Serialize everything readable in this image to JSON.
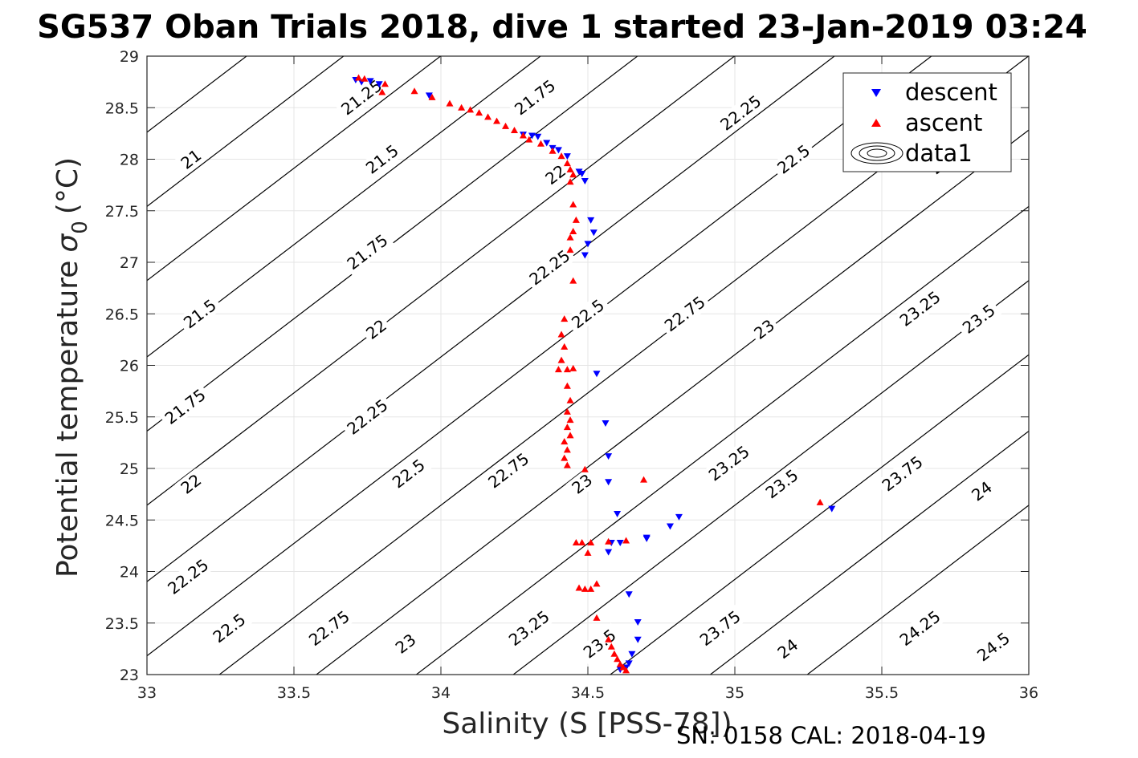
{
  "chart_data": {
    "type": "scatter",
    "title": "SG537 Oban Trials 2018, dive 1 started 23-Jan-2019 03:24",
    "xlabel": "Salinity (S [PSS-78])",
    "ylabel": "Potential temperature",
    "ylabel_sigma": "σ",
    "ylabel_sub": "0",
    "ylabel_unit": "(°C)",
    "xlim": [
      33,
      36
    ],
    "ylim": [
      23,
      29
    ],
    "x_ticks": [
      33,
      33.5,
      34,
      34.5,
      35,
      35.5,
      36
    ],
    "x_tick_labels": [
      "33",
      "33.5",
      "34",
      "34.5",
      "35",
      "35.5",
      "36"
    ],
    "y_ticks": [
      23,
      23.5,
      24,
      24.5,
      25,
      25.5,
      26,
      26.5,
      27,
      27.5,
      28,
      28.5,
      29
    ],
    "y_tick_labels": [
      "23",
      "23.5",
      "24",
      "24.5",
      "25",
      "25.5",
      "26",
      "26.5",
      "27",
      "27.5",
      "28",
      "28.5",
      "29"
    ],
    "grid": true,
    "legend": {
      "placement": "top-right",
      "entries": [
        {
          "name": "descent",
          "marker": "triangle-down",
          "color": "#0000ff"
        },
        {
          "name": "ascent",
          "marker": "triangle-up",
          "color": "#ff0000"
        },
        {
          "name": "data1",
          "marker": "contour"
        }
      ]
    },
    "footer": "SN: 0158  CAL: 2018-04-19",
    "colors": {
      "descent": "#0000ff",
      "ascent": "#ff0000",
      "contour": "#000000",
      "grid": "#e5e5e5"
    },
    "density_contours": {
      "levels": [
        21,
        21.25,
        21.5,
        21.75,
        22,
        22.25,
        22.5,
        22.75,
        23,
        23.25,
        23.5,
        23.75,
        24,
        24.25,
        24.5
      ],
      "slope_degC_per_PSU": 2.18,
      "reference_temperature_degC": 28.0,
      "reference_salinity_by_level": [
        [
          21,
          32.88
        ],
        [
          21.25,
          33.21
        ],
        [
          21.5,
          33.54
        ],
        [
          21.75,
          33.88
        ],
        [
          22,
          34.21
        ],
        [
          22.25,
          34.54
        ],
        [
          22.5,
          34.88
        ],
        [
          22.75,
          35.21
        ],
        [
          23,
          35.54
        ],
        [
          23.25,
          35.87
        ],
        [
          23.5,
          36.21
        ],
        [
          23.75,
          36.54
        ],
        [
          24,
          36.87
        ],
        [
          24.25,
          37.21
        ],
        [
          24.5,
          37.54
        ]
      ],
      "labels": [
        {
          "text": "21.25",
          "s": 33.73,
          "t": 28.6
        },
        {
          "text": "21",
          "s": 33.15,
          "t": 28.0
        },
        {
          "text": "21.5",
          "s": 33.8,
          "t": 28.0
        },
        {
          "text": "21.75",
          "s": 34.32,
          "t": 28.6
        },
        {
          "text": "22",
          "s": 34.39,
          "t": 27.85
        },
        {
          "text": "22.25",
          "s": 35.02,
          "t": 28.45
        },
        {
          "text": "22.5",
          "s": 35.2,
          "t": 28.0
        },
        {
          "text": "23",
          "s": 35.7,
          "t": 27.95
        },
        {
          "text": "21.75",
          "s": 33.75,
          "t": 27.1
        },
        {
          "text": "22.25",
          "s": 34.37,
          "t": 26.95
        },
        {
          "text": "21.5",
          "s": 33.18,
          "t": 26.5
        },
        {
          "text": "22",
          "s": 33.78,
          "t": 26.35
        },
        {
          "text": "22.5",
          "s": 34.5,
          "t": 26.5
        },
        {
          "text": "22.75",
          "s": 34.83,
          "t": 26.5
        },
        {
          "text": "23",
          "s": 35.1,
          "t": 26.35
        },
        {
          "text": "23.25",
          "s": 35.63,
          "t": 26.55
        },
        {
          "text": "23.5",
          "s": 35.83,
          "t": 26.45
        },
        {
          "text": "21.75",
          "s": 33.13,
          "t": 25.6
        },
        {
          "text": "22.25",
          "s": 33.75,
          "t": 25.5
        },
        {
          "text": "22.5",
          "s": 33.89,
          "t": 24.95
        },
        {
          "text": "22.75",
          "s": 34.23,
          "t": 24.98
        },
        {
          "text": "23",
          "s": 34.48,
          "t": 24.85
        },
        {
          "text": "23.25",
          "s": 34.98,
          "t": 25.05
        },
        {
          "text": "23.5",
          "s": 35.16,
          "t": 24.85
        },
        {
          "text": "23.75",
          "s": 35.57,
          "t": 24.95
        },
        {
          "text": "24",
          "s": 35.84,
          "t": 24.78
        },
        {
          "text": "22",
          "s": 33.15,
          "t": 24.85
        },
        {
          "text": "22.25",
          "s": 33.14,
          "t": 23.95
        },
        {
          "text": "22.5",
          "s": 33.28,
          "t": 23.45
        },
        {
          "text": "22.75",
          "s": 33.62,
          "t": 23.45
        },
        {
          "text": "23",
          "s": 33.88,
          "t": 23.3
        },
        {
          "text": "23.25",
          "s": 34.3,
          "t": 23.45
        },
        {
          "text": "23.5",
          "s": 34.54,
          "t": 23.3
        },
        {
          "text": "23.75",
          "s": 34.95,
          "t": 23.45
        },
        {
          "text": "24",
          "s": 35.18,
          "t": 23.25
        },
        {
          "text": "24.25",
          "s": 35.63,
          "t": 23.45
        },
        {
          "text": "24.5",
          "s": 35.88,
          "t": 23.27
        }
      ]
    },
    "series": [
      {
        "name": "descent",
        "marker": "triangle-down",
        "color": "#0000ff",
        "points": [
          [
            33.71,
            28.77
          ],
          [
            33.73,
            28.75
          ],
          [
            33.76,
            28.76
          ],
          [
            33.79,
            28.73
          ],
          [
            33.96,
            28.62
          ],
          [
            34.28,
            28.24
          ],
          [
            34.31,
            28.23
          ],
          [
            34.33,
            28.22
          ],
          [
            34.36,
            28.16
          ],
          [
            34.38,
            28.11
          ],
          [
            34.4,
            28.09
          ],
          [
            34.43,
            28.03
          ],
          [
            34.47,
            27.88
          ],
          [
            34.48,
            27.86
          ],
          [
            34.49,
            27.79
          ],
          [
            34.51,
            27.41
          ],
          [
            34.52,
            27.29
          ],
          [
            34.5,
            27.18
          ],
          [
            34.49,
            27.07
          ],
          [
            34.53,
            25.92
          ],
          [
            34.56,
            25.44
          ],
          [
            34.57,
            25.12
          ],
          [
            34.57,
            24.87
          ],
          [
            34.6,
            24.56
          ],
          [
            34.58,
            24.28
          ],
          [
            34.57,
            24.19
          ],
          [
            34.61,
            24.28
          ],
          [
            34.7,
            24.33
          ],
          [
            34.7,
            24.32
          ],
          [
            34.78,
            24.44
          ],
          [
            34.81,
            24.53
          ],
          [
            35.33,
            24.61
          ],
          [
            34.64,
            23.78
          ],
          [
            34.67,
            23.51
          ],
          [
            34.67,
            23.34
          ],
          [
            34.65,
            23.2
          ],
          [
            34.64,
            23.11
          ],
          [
            34.63,
            23.07
          ],
          [
            34.61,
            23.05
          ]
        ]
      },
      {
        "name": "ascent",
        "marker": "triangle-up",
        "color": "#ff0000",
        "points": [
          [
            33.72,
            28.79
          ],
          [
            33.74,
            28.78
          ],
          [
            33.81,
            28.73
          ],
          [
            33.8,
            28.65
          ],
          [
            33.91,
            28.66
          ],
          [
            33.97,
            28.6
          ],
          [
            34.03,
            28.54
          ],
          [
            34.07,
            28.5
          ],
          [
            34.1,
            28.48
          ],
          [
            34.13,
            28.45
          ],
          [
            34.16,
            28.41
          ],
          [
            34.19,
            28.37
          ],
          [
            34.22,
            28.32
          ],
          [
            34.25,
            28.28
          ],
          [
            34.28,
            28.23
          ],
          [
            34.3,
            28.19
          ],
          [
            34.34,
            28.15
          ],
          [
            34.38,
            28.08
          ],
          [
            34.41,
            28.03
          ],
          [
            34.43,
            27.96
          ],
          [
            34.44,
            27.9
          ],
          [
            34.45,
            27.85
          ],
          [
            34.44,
            27.78
          ],
          [
            34.45,
            27.56
          ],
          [
            34.46,
            27.41
          ],
          [
            34.45,
            27.3
          ],
          [
            34.44,
            27.24
          ],
          [
            34.44,
            27.12
          ],
          [
            34.45,
            26.82
          ],
          [
            34.42,
            26.45
          ],
          [
            34.41,
            26.3
          ],
          [
            34.42,
            26.18
          ],
          [
            34.41,
            26.05
          ],
          [
            34.4,
            25.96
          ],
          [
            34.43,
            25.96
          ],
          [
            34.45,
            25.97
          ],
          [
            34.43,
            25.8
          ],
          [
            34.44,
            25.66
          ],
          [
            34.43,
            25.55
          ],
          [
            34.44,
            25.47
          ],
          [
            34.43,
            25.4
          ],
          [
            34.44,
            25.32
          ],
          [
            34.42,
            25.26
          ],
          [
            34.43,
            25.18
          ],
          [
            34.42,
            25.1
          ],
          [
            34.43,
            25.03
          ],
          [
            34.49,
            24.99
          ],
          [
            34.69,
            24.89
          ],
          [
            35.29,
            24.67
          ],
          [
            34.46,
            24.28
          ],
          [
            34.48,
            24.28
          ],
          [
            34.51,
            24.28
          ],
          [
            34.57,
            24.29
          ],
          [
            34.63,
            24.3
          ],
          [
            34.5,
            24.18
          ],
          [
            34.53,
            23.88
          ],
          [
            34.47,
            23.84
          ],
          [
            34.49,
            23.83
          ],
          [
            34.51,
            23.83
          ],
          [
            34.53,
            23.55
          ],
          [
            34.57,
            23.34
          ],
          [
            34.58,
            23.27
          ],
          [
            34.59,
            23.2
          ],
          [
            34.6,
            23.15
          ],
          [
            34.61,
            23.1
          ],
          [
            34.62,
            23.07
          ],
          [
            34.63,
            23.04
          ]
        ]
      }
    ]
  }
}
